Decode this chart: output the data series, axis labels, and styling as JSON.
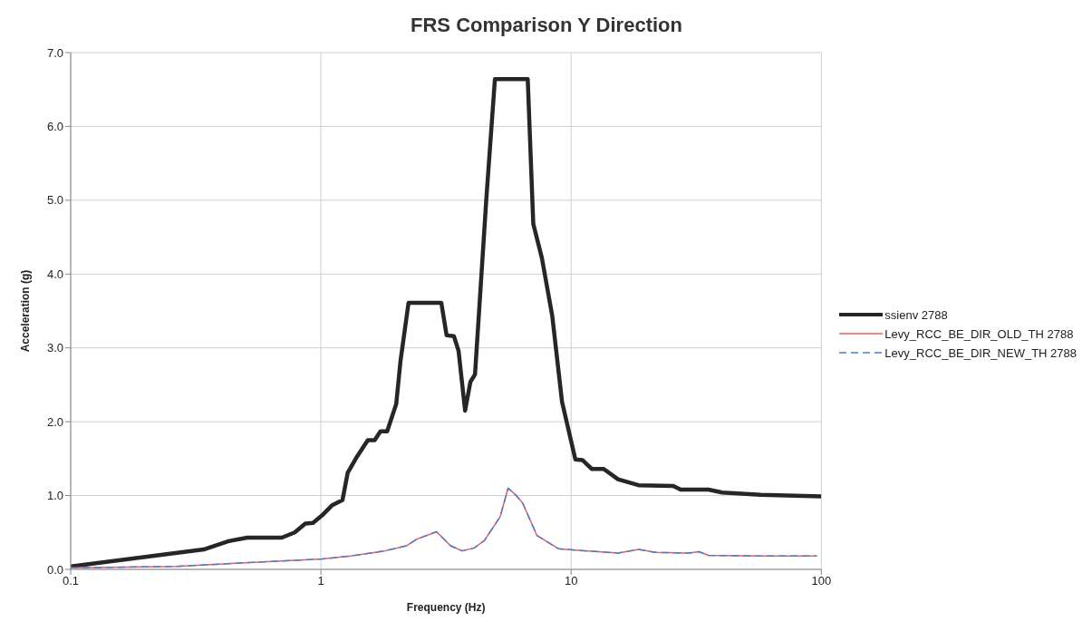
{
  "chart_data": {
    "type": "line",
    "title": "FRS Comparison Y Direction",
    "xlabel": "Frequency (Hz)",
    "ylabel": "Acceleration (g)",
    "log": "x",
    "xlim": [
      0.1,
      100
    ],
    "xticks": [
      0.1,
      1,
      10,
      100
    ],
    "ylim": [
      0,
      7
    ],
    "yticks": [
      {
        "value": 0,
        "label": "0.0"
      },
      {
        "value": 1,
        "label": "1.0"
      },
      {
        "value": 2,
        "label": "2.0"
      },
      {
        "value": 3,
        "label": "3.0"
      },
      {
        "value": 4,
        "label": "4.0"
      },
      {
        "value": 5,
        "label": "5.0"
      },
      {
        "value": 6,
        "label": "6.0"
      },
      {
        "value": 7,
        "label": "7.0"
      }
    ],
    "grid": true,
    "legend": "right",
    "marker": "none",
    "series": [
      {
        "name": "ssienv 2788",
        "color": "#262626",
        "line_style": "solid",
        "x": [
          0.1,
          0.34,
          0.425,
          0.508,
          0.698,
          0.786,
          0.866,
          0.93,
          1.01,
          1.11,
          1.22,
          1.28,
          1.39,
          1.54,
          1.64,
          1.73,
          1.84,
          2.0,
          2.08,
          2.24,
          3.03,
          3.18,
          3.4,
          3.55,
          3.77,
          3.96,
          4.13,
          4.59,
          4.96,
          6.71,
          7.06,
          7.64,
          8.41,
          9.2,
          10.4,
          11.1,
          12.1,
          13.5,
          15.4,
          18.6,
          25.6,
          27.4,
          35.4,
          40.2,
          57.2,
          100
        ],
        "values": [
          0.04,
          0.27,
          0.38,
          0.43,
          0.43,
          0.5,
          0.62,
          0.63,
          0.73,
          0.87,
          0.94,
          1.31,
          1.52,
          1.75,
          1.75,
          1.87,
          1.87,
          2.24,
          2.82,
          3.61,
          3.61,
          3.17,
          3.16,
          2.96,
          2.15,
          2.54,
          2.64,
          5.05,
          6.64,
          6.64,
          4.68,
          4.22,
          3.43,
          2.27,
          1.49,
          1.48,
          1.36,
          1.36,
          1.22,
          1.14,
          1.13,
          1.08,
          1.08,
          1.04,
          1.01,
          0.99
        ]
      },
      {
        "name": "Levy_RCC_BE_DIR_OLD_TH 2788",
        "color": "#e8605a",
        "line_style": "solid",
        "x": [
          0.1,
          0.263,
          0.5,
          1.01,
          1.31,
          1.8,
          2.2,
          2.42,
          2.9,
          3.3,
          3.67,
          4.1,
          4.5,
          5.2,
          5.6,
          6.0,
          6.4,
          7.3,
          8.9,
          10.4,
          15.4,
          18.6,
          21.8,
          29.3,
          32.4,
          35.4,
          57,
          96
        ],
        "values": [
          0.02,
          0.04,
          0.09,
          0.14,
          0.18,
          0.25,
          0.32,
          0.41,
          0.51,
          0.32,
          0.25,
          0.29,
          0.39,
          0.71,
          1.1,
          1.01,
          0.9,
          0.46,
          0.28,
          0.26,
          0.22,
          0.27,
          0.23,
          0.22,
          0.24,
          0.19,
          0.18,
          0.18
        ]
      },
      {
        "name": "Levy_RCC_BE_DIR_NEW_TH 2788",
        "color": "#4a7fd0",
        "line_style": "dashed",
        "x": [
          0.1,
          0.263,
          0.5,
          1.01,
          1.31,
          1.8,
          2.2,
          2.42,
          2.9,
          3.3,
          3.67,
          4.1,
          4.5,
          5.2,
          5.6,
          6.0,
          6.4,
          7.3,
          8.9,
          10.4,
          15.4,
          18.6,
          21.8,
          29.3,
          32.4,
          35.4,
          57,
          96
        ],
        "values": [
          0.02,
          0.04,
          0.09,
          0.14,
          0.18,
          0.25,
          0.32,
          0.41,
          0.51,
          0.32,
          0.25,
          0.29,
          0.39,
          0.71,
          1.1,
          1.01,
          0.9,
          0.46,
          0.28,
          0.26,
          0.22,
          0.27,
          0.23,
          0.22,
          0.24,
          0.19,
          0.18,
          0.18
        ]
      }
    ]
  }
}
